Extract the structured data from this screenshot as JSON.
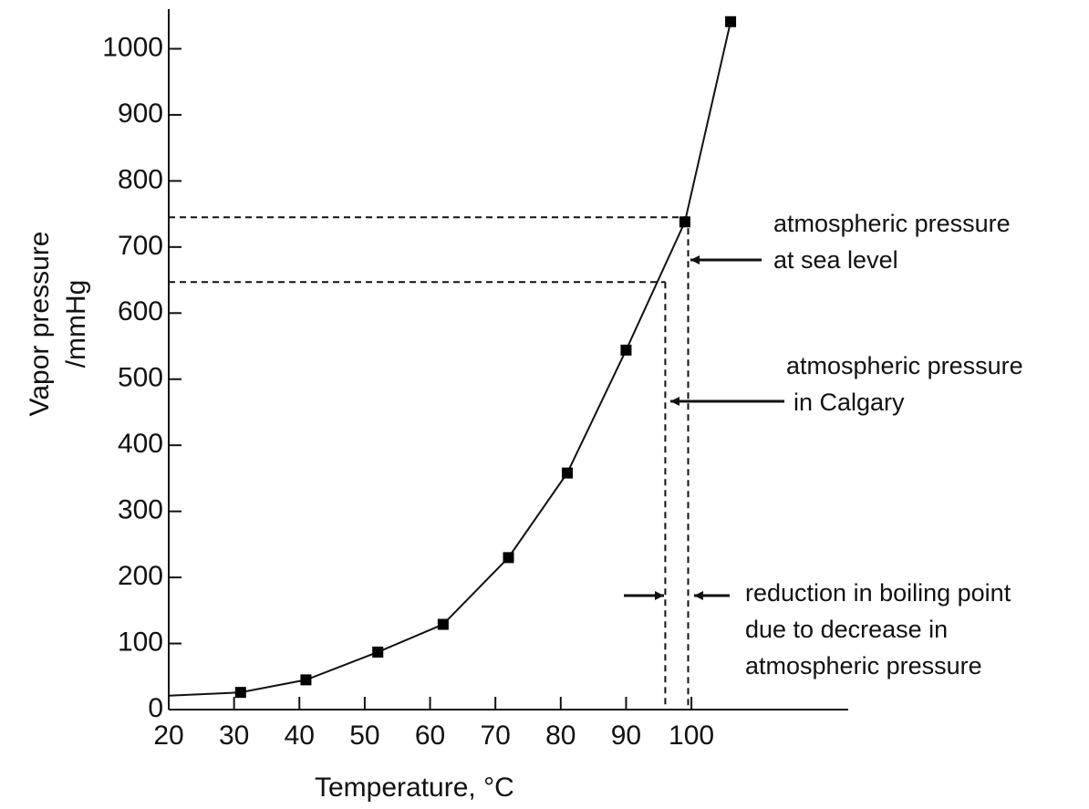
{
  "chart_data": {
    "type": "line",
    "x_label": "Temperature, °C",
    "y_label": [
      "Vapor pressure",
      "/mmHg"
    ],
    "xlim": [
      20,
      124
    ],
    "ylim": [
      0,
      1060
    ],
    "xticks": [
      20,
      30,
      40,
      50,
      60,
      70,
      80,
      90,
      100
    ],
    "yticks": [
      0,
      100,
      200,
      300,
      400,
      500,
      600,
      700,
      800,
      900,
      1000
    ],
    "series": [
      {
        "kind": "line",
        "color": "#111111",
        "x": [
          20,
          31,
          41,
          52,
          62,
          72,
          81,
          90,
          99,
          106
        ],
        "values": [
          21,
          26,
          45,
          87,
          129,
          230,
          358,
          544,
          738,
          1041
        ]
      },
      {
        "kind": "marker",
        "color": "#000000",
        "x": [
          31,
          41,
          52,
          62,
          72,
          81,
          90,
          99,
          106
        ],
        "values": [
          26,
          45,
          87,
          129,
          230,
          358,
          544,
          738,
          1041
        ]
      }
    ],
    "reference_lines": [
      {
        "x": 99.5,
        "y": 745
      },
      {
        "x": 96,
        "y": 647
      }
    ],
    "annotations": [
      {
        "lines": [
          "atmospheric pressure",
          "at sea level"
        ]
      },
      {
        "lines": [
          "atmospheric pressure",
          "in Calgary"
        ]
      },
      {
        "lines": [
          "reduction in boiling point",
          "due to decrease in",
          "atmospheric pressure"
        ]
      }
    ]
  }
}
